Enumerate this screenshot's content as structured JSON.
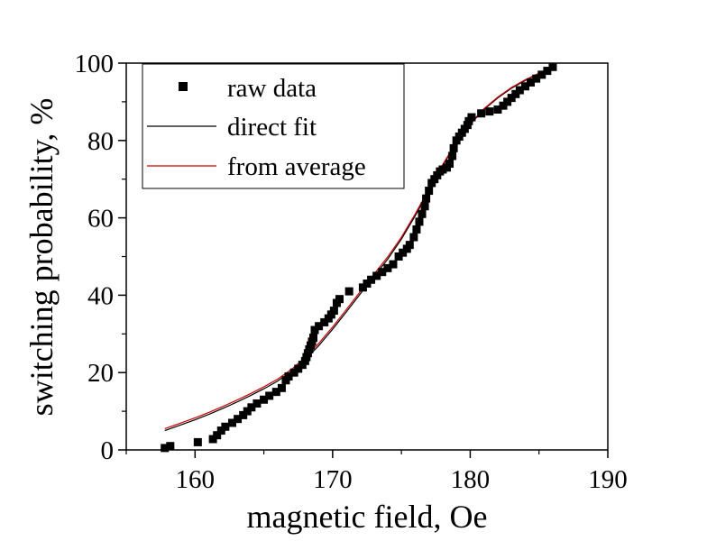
{
  "chart_data": {
    "type": "scatter",
    "title": "",
    "xlabel": "magnetic field, Oe",
    "ylabel": "switching probability, %",
    "xlim": [
      155,
      190
    ],
    "ylim": [
      0,
      100
    ],
    "xticks": [
      "160",
      "170",
      "180",
      "190"
    ],
    "xtick_values": [
      160,
      170,
      180,
      190
    ],
    "yticks": [
      "0",
      "20",
      "40",
      "60",
      "80",
      "100"
    ],
    "ytick_values": [
      0,
      20,
      40,
      60,
      80,
      100
    ],
    "grid": false,
    "legend_position": "top-left",
    "series": [
      {
        "name": "raw data",
        "kind": "markers",
        "color": "#000000",
        "x": [
          157.8,
          158.2,
          160.2,
          161.3,
          161.6,
          161.9,
          162.2,
          162.7,
          163.1,
          163.5,
          163.8,
          164.1,
          164.5,
          165.0,
          165.4,
          165.9,
          166.3,
          166.6,
          166.8,
          167.2,
          167.5,
          167.8,
          168.0,
          168.1,
          168.2,
          168.3,
          168.4,
          168.5,
          168.6,
          168.7,
          169.0,
          169.4,
          169.7,
          169.9,
          170.1,
          170.3,
          170.5,
          171.2,
          172.2,
          172.5,
          172.8,
          173.2,
          173.6,
          174.0,
          174.4,
          174.8,
          175.1,
          175.4,
          175.6,
          175.9,
          176.1,
          176.3,
          176.5,
          176.7,
          176.8,
          177.0,
          177.2,
          177.4,
          177.6,
          177.8,
          178.0,
          178.3,
          178.5,
          178.7,
          178.8,
          179.0,
          179.2,
          179.4,
          179.6,
          179.8,
          179.9,
          180.1,
          180.8,
          181.4,
          182.0,
          182.4,
          182.7,
          183.0,
          183.3,
          183.6,
          184.0,
          184.4,
          184.8,
          185.2,
          185.6,
          186.0
        ],
        "y": [
          0.5,
          1.0,
          2.0,
          2.8,
          3.8,
          5.0,
          6.0,
          7.0,
          8.0,
          9.0,
          10.0,
          11.0,
          12.0,
          13.0,
          14.0,
          15.0,
          16.0,
          18.0,
          19.0,
          20.0,
          21.0,
          22.0,
          23.0,
          24.0,
          25.0,
          26.0,
          27.0,
          28.0,
          29.0,
          31.0,
          32.0,
          33.0,
          34.0,
          35.0,
          36.0,
          38.0,
          39.0,
          41.0,
          42.0,
          43.0,
          44.0,
          45.0,
          46.0,
          47.0,
          48.0,
          50.0,
          51.0,
          52.0,
          53.0,
          55.0,
          57.0,
          59.0,
          61.0,
          63.0,
          65.0,
          67.0,
          69.0,
          70.0,
          71.0,
          72.0,
          72.5,
          73.0,
          74.0,
          76.0,
          78.0,
          80.0,
          81.0,
          82.0,
          83.0,
          84.0,
          85.0,
          86.0,
          87.0,
          87.5,
          88.0,
          89.0,
          90.0,
          91.0,
          92.0,
          93.0,
          94.0,
          95.0,
          96.0,
          97.0,
          98.0,
          99.0
        ]
      },
      {
        "name": "direct fit",
        "kind": "line",
        "color": "#000000",
        "x": [
          157.8,
          159,
          160,
          161,
          162,
          163,
          164,
          165,
          166,
          167,
          168,
          169,
          170,
          171,
          172,
          173,
          174,
          175,
          176,
          177,
          178,
          179,
          180,
          181,
          182,
          183,
          184,
          185,
          186
        ],
        "y": [
          5.0,
          6.5,
          7.8,
          9.2,
          10.7,
          12.3,
          14.0,
          15.8,
          17.8,
          20.3,
          23.3,
          27.0,
          31.2,
          35.7,
          40.3,
          44.8,
          49.3,
          54.5,
          60.5,
          67.0,
          73.5,
          79.3,
          84.2,
          88.0,
          91.0,
          93.5,
          95.5,
          97.3,
          98.8
        ]
      },
      {
        "name": "from average",
        "kind": "line",
        "color": "#cc0000",
        "x": [
          157.8,
          159,
          160,
          161,
          162,
          163,
          164,
          165,
          166,
          167,
          168,
          169,
          170,
          171,
          172,
          173,
          174,
          175,
          176,
          177,
          178,
          179,
          180,
          181,
          182,
          183,
          184,
          185,
          186
        ],
        "y": [
          5.5,
          7.0,
          8.3,
          9.7,
          11.2,
          12.8,
          14.5,
          16.3,
          18.3,
          20.8,
          23.9,
          27.6,
          31.8,
          36.3,
          40.9,
          45.4,
          49.9,
          55.0,
          61.0,
          67.4,
          73.8,
          79.6,
          84.4,
          88.2,
          91.2,
          93.7,
          95.7,
          97.4,
          98.9
        ]
      }
    ]
  }
}
